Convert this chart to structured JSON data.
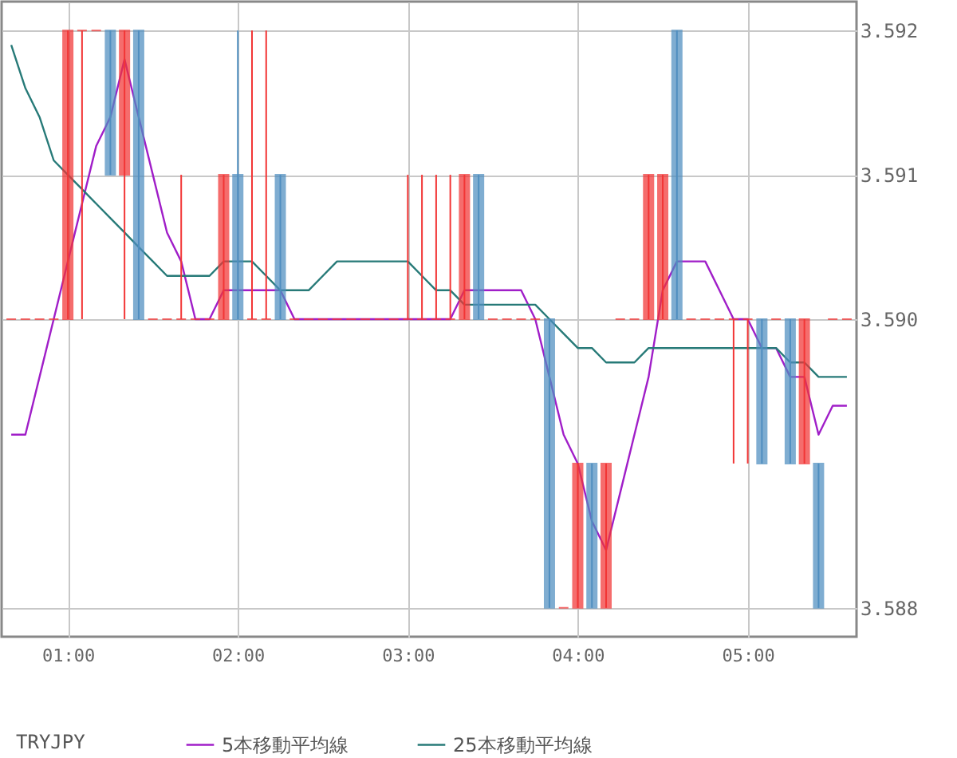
{
  "chart_data": {
    "type": "candlestick",
    "legend_title": "TRYJPY",
    "legend": "bottom",
    "grid": true,
    "xlim": [
      0.61,
      5.64
    ],
    "ylim": [
      3.5878,
      3.5922
    ],
    "xticks": [
      {
        "value": 1,
        "label": "01:00"
      },
      {
        "value": 2,
        "label": "02:00"
      },
      {
        "value": 3,
        "label": "03:00"
      },
      {
        "value": 4,
        "label": "04:00"
      },
      {
        "value": 5,
        "label": "05:00"
      }
    ],
    "yticks": [
      3.588,
      {
        "value": 3.59,
        "label": "3.590"
      },
      3.591,
      3.592
    ],
    "x": [
      0.6667,
      0.75,
      0.8333,
      0.9167,
      1,
      1.0833,
      1.1667,
      1.25,
      1.3333,
      1.4167,
      1.5,
      1.5833,
      1.6667,
      1.75,
      1.8333,
      1.9167,
      2,
      2.0833,
      2.1667,
      2.25,
      2.3333,
      2.4167,
      2.5,
      2.5833,
      2.6667,
      2.75,
      2.8333,
      2.9167,
      3,
      3.0833,
      3.1667,
      3.25,
      3.3333,
      3.4167,
      3.5,
      3.5833,
      3.6667,
      3.75,
      3.8333,
      3.9167,
      4,
      4.0833,
      4.1667,
      4.25,
      4.3333,
      4.4167,
      4.5,
      4.5833,
      4.6667,
      4.75,
      4.8333,
      4.9167,
      5,
      5.0833,
      5.1667,
      5.25,
      5.3333,
      5.4167,
      5.5,
      5.5833
    ],
    "ohlc": [
      [
        3.59,
        3.59,
        3.59,
        3.59
      ],
      [
        3.59,
        3.59,
        3.59,
        3.59
      ],
      [
        3.59,
        3.59,
        3.59,
        3.59
      ],
      [
        3.59,
        3.59,
        3.59,
        3.59
      ],
      [
        3.59,
        3.592,
        3.59,
        3.592
      ],
      [
        3.592,
        3.592,
        3.59,
        3.592
      ],
      [
        3.592,
        3.592,
        3.592,
        3.592
      ],
      [
        3.592,
        3.592,
        3.591,
        3.591
      ],
      [
        3.591,
        3.592,
        3.59,
        3.592
      ],
      [
        3.592,
        3.592,
        3.59,
        3.59
      ],
      [
        3.59,
        3.59,
        3.59,
        3.59
      ],
      [
        3.59,
        3.59,
        3.59,
        3.59
      ],
      [
        3.59,
        3.591,
        3.59,
        3.59
      ],
      [
        3.59,
        3.59,
        3.59,
        3.59
      ],
      [
        3.59,
        3.59,
        3.59,
        3.59
      ],
      [
        3.59,
        3.591,
        3.59,
        3.591
      ],
      [
        3.591,
        3.592,
        3.59,
        3.59
      ],
      [
        3.59,
        3.592,
        3.59,
        3.59
      ],
      [
        3.59,
        3.592,
        3.59,
        3.59
      ],
      [
        3.591,
        3.591,
        3.59,
        3.59
      ],
      [
        3.59,
        3.59,
        3.59,
        3.59
      ],
      [
        3.59,
        3.59,
        3.59,
        3.59
      ],
      [
        3.59,
        3.59,
        3.59,
        3.59
      ],
      [
        3.59,
        3.59,
        3.59,
        3.59
      ],
      [
        3.59,
        3.59,
        3.59,
        3.59
      ],
      [
        3.59,
        3.59,
        3.59,
        3.59
      ],
      [
        3.59,
        3.59,
        3.59,
        3.59
      ],
      [
        3.59,
        3.59,
        3.59,
        3.59
      ],
      [
        3.59,
        3.591,
        3.59,
        3.59
      ],
      [
        3.59,
        3.591,
        3.59,
        3.59
      ],
      [
        3.59,
        3.591,
        3.59,
        3.59
      ],
      [
        3.59,
        3.591,
        3.59,
        3.59
      ],
      [
        3.59,
        3.591,
        3.59,
        3.591
      ],
      [
        3.591,
        3.591,
        3.59,
        3.59
      ],
      [
        3.59,
        3.59,
        3.59,
        3.59
      ],
      [
        3.59,
        3.59,
        3.59,
        3.59
      ],
      [
        3.59,
        3.59,
        3.59,
        3.59
      ],
      [
        3.59,
        3.59,
        3.59,
        3.59
      ],
      [
        3.59,
        3.59,
        3.588,
        3.588
      ],
      [
        3.588,
        3.588,
        3.588,
        3.588
      ],
      [
        3.588,
        3.589,
        3.588,
        3.589
      ],
      [
        3.589,
        3.589,
        3.588,
        3.588
      ],
      [
        3.588,
        3.589,
        3.588,
        3.589
      ],
      [
        3.59,
        3.59,
        3.59,
        3.59
      ],
      [
        3.59,
        3.59,
        3.59,
        3.59
      ],
      [
        3.59,
        3.591,
        3.59,
        3.591
      ],
      [
        3.59,
        3.591,
        3.59,
        3.591
      ],
      [
        3.592,
        3.592,
        3.59,
        3.59
      ],
      [
        3.59,
        3.59,
        3.59,
        3.59
      ],
      [
        3.59,
        3.59,
        3.59,
        3.59
      ],
      [
        3.59,
        3.59,
        3.59,
        3.59
      ],
      [
        3.59,
        3.59,
        3.589,
        3.59
      ],
      [
        3.59,
        3.59,
        3.589,
        3.59
      ],
      [
        3.59,
        3.59,
        3.589,
        3.589
      ],
      [
        3.59,
        3.59,
        3.59,
        3.59
      ],
      [
        3.59,
        3.59,
        3.589,
        3.589
      ],
      [
        3.589,
        3.59,
        3.589,
        3.59
      ],
      [
        3.589,
        3.589,
        3.588,
        3.588
      ],
      [
        3.59,
        3.59,
        3.59,
        3.59
      ],
      [
        3.59,
        3.59,
        3.59,
        3.59
      ]
    ],
    "colors": [
      "#f23535",
      "#f23535",
      "#f23535",
      "#f23535",
      "#f23535",
      "#f23535",
      "#f23535",
      "#4f8ec0",
      "#f23535",
      "#4f8ec0",
      "#f23535",
      "#f23535",
      "#f23535",
      "#f23535",
      "#f23535",
      "#f23535",
      "#4f8ec0",
      "#f23535",
      "#f23535",
      "#4f8ec0",
      "#f23535",
      "#f23535",
      "#f23535",
      "#f23535",
      "#f23535",
      "#f23535",
      "#f23535",
      "#f23535",
      "#f23535",
      "#f23535",
      "#f23535",
      "#f23535",
      "#f23535",
      "#4f8ec0",
      "#f23535",
      "#f23535",
      "#f23535",
      "#f23535",
      "#4f8ec0",
      "#f23535",
      "#f23535",
      "#4f8ec0",
      "#f23535",
      "#f23535",
      "#f23535",
      "#f23535",
      "#f23535",
      "#4f8ec0",
      "#f23535",
      "#f23535",
      "#f23535",
      "#f23535",
      "#f23535",
      "#4f8ec0",
      "#f23535",
      "#4f8ec0",
      "#f23535",
      "#4f8ec0",
      "#f23535",
      "#f23535"
    ],
    "series": [
      {
        "name": "5本移動平均線",
        "type": "line",
        "color": "#a01ec8",
        "values": [
          3.5892,
          3.5892,
          3.5896,
          3.59,
          3.5904,
          3.5908,
          3.5912,
          3.5914,
          3.5918,
          3.5914,
          3.591,
          3.5906,
          3.5904,
          3.59,
          3.59,
          3.5902,
          3.5902,
          3.5902,
          3.5902,
          3.5902,
          3.59,
          3.59,
          3.59,
          3.59,
          3.59,
          3.59,
          3.59,
          3.59,
          3.59,
          3.59,
          3.59,
          3.59,
          3.5902,
          3.5902,
          3.5902,
          3.5902,
          3.5902,
          3.59,
          3.5896,
          3.5892,
          3.589,
          3.5886,
          3.5884,
          3.5888,
          3.5892,
          3.5896,
          3.5902,
          3.5904,
          3.5904,
          3.5904,
          3.5902,
          3.59,
          3.59,
          3.5898,
          3.5898,
          3.5896,
          3.5896,
          3.5892,
          3.5894,
          3.5894
        ]
      },
      {
        "name": "25本移動平均線",
        "type": "line",
        "color": "#277a78",
        "values": [
          3.5919,
          3.5916,
          3.5914,
          3.5911,
          3.591,
          3.5909,
          3.5908,
          3.5907,
          3.5906,
          3.5905,
          3.5904,
          3.5903,
          3.5903,
          3.5903,
          3.5903,
          3.5904,
          3.5904,
          3.5904,
          3.5903,
          3.5902,
          3.5902,
          3.5902,
          3.5903,
          3.5904,
          3.5904,
          3.5904,
          3.5904,
          3.5904,
          3.5904,
          3.5903,
          3.5902,
          3.5902,
          3.5901,
          3.5901,
          3.5901,
          3.5901,
          3.5901,
          3.5901,
          3.59,
          3.5899,
          3.5898,
          3.5898,
          3.5897,
          3.5897,
          3.5897,
          3.5898,
          3.5898,
          3.5898,
          3.5898,
          3.5898,
          3.5898,
          3.5898,
          3.5898,
          3.5898,
          3.5898,
          3.5897,
          3.5897,
          3.5896,
          3.5896,
          3.5896
        ]
      }
    ]
  }
}
